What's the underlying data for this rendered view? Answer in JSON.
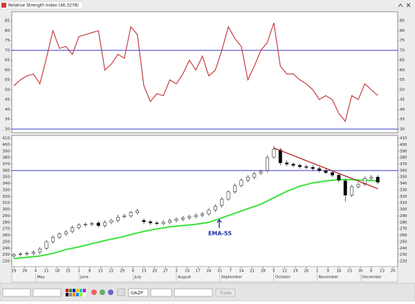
{
  "chart_data": [
    {
      "type": "line",
      "title": "Relative Strength Index (46.3278)",
      "color": "#c0282d",
      "x": [
        0,
        3,
        6,
        9,
        12,
        15,
        18,
        21,
        24,
        27,
        30,
        33,
        36,
        39,
        42,
        45,
        48,
        51,
        54,
        57,
        60,
        63,
        66,
        69,
        72,
        75,
        78,
        81,
        84,
        87,
        90,
        93,
        96,
        99,
        102,
        105,
        108,
        111,
        114,
        117,
        120,
        123,
        126,
        129,
        132,
        135,
        138,
        141,
        144,
        147,
        150,
        153,
        156,
        159,
        162,
        165,
        168
      ],
      "values": [
        52,
        55,
        57,
        58,
        53,
        66,
        80,
        71,
        72,
        68,
        77,
        78,
        79,
        80,
        60,
        63,
        68,
        66,
        82,
        78,
        52,
        44,
        48,
        47,
        55,
        53,
        58,
        65,
        60,
        67,
        57,
        60,
        70,
        82,
        76,
        72,
        55,
        62,
        70,
        74,
        84,
        62,
        58,
        58,
        55,
        53,
        50,
        45,
        47,
        45,
        38,
        34,
        47,
        45,
        53,
        50,
        47
      ],
      "xlim": [
        -1,
        177.2
      ],
      "ylim": [
        28.2,
        89.6
      ],
      "yticks": [
        30,
        35,
        40,
        45,
        50,
        55,
        60,
        65,
        70,
        75,
        80,
        85
      ],
      "hlines": [
        70,
        30
      ],
      "hline_color": "#3535c8"
    },
    {
      "type": "candlestick",
      "up_color": "#ffffff",
      "down_color": "#000000",
      "x": [
        0,
        3,
        6,
        9,
        12,
        15,
        18,
        21,
        24,
        27,
        30,
        33,
        36,
        39,
        42,
        45,
        48,
        51,
        54,
        57,
        60,
        63,
        66,
        69,
        72,
        75,
        78,
        81,
        84,
        87,
        90,
        93,
        96,
        99,
        102,
        105,
        108,
        111,
        114,
        117,
        120,
        123,
        126,
        129,
        132,
        135,
        138,
        141,
        144,
        147,
        150,
        153,
        156,
        159,
        162,
        165,
        168
      ],
      "open": [
        228,
        230,
        231,
        232,
        234,
        240,
        250,
        257,
        262,
        266,
        272,
        276,
        277,
        279,
        275,
        280,
        283,
        289,
        290,
        295,
        283,
        281,
        279,
        278,
        280,
        283,
        285,
        287,
        289,
        291,
        293,
        299,
        306,
        316,
        327,
        337,
        345,
        350,
        356,
        360,
        381,
        392,
        372,
        370,
        368,
        366,
        365,
        363,
        360,
        357,
        353,
        344,
        322,
        335,
        339,
        348,
        350
      ],
      "high": [
        233,
        234,
        235,
        237,
        242,
        253,
        260,
        265,
        268,
        275,
        279,
        280,
        281,
        282,
        283,
        286,
        292,
        293,
        298,
        301,
        286,
        284,
        282,
        283,
        286,
        288,
        290,
        292,
        294,
        296,
        302,
        308,
        319,
        330,
        340,
        348,
        353,
        358,
        361,
        384,
        398,
        395,
        376,
        373,
        371,
        369,
        368,
        366,
        363,
        360,
        356,
        347,
        338,
        342,
        351,
        353,
        353
      ],
      "low": [
        225,
        227,
        228,
        229,
        231,
        237,
        247,
        254,
        259,
        263,
        269,
        273,
        274,
        272,
        272,
        277,
        280,
        286,
        287,
        292,
        277,
        276,
        275,
        275,
        277,
        280,
        282,
        284,
        286,
        288,
        290,
        296,
        303,
        313,
        324,
        334,
        342,
        347,
        353,
        357,
        378,
        368,
        367,
        365,
        363,
        362,
        360,
        357,
        354,
        350,
        342,
        312,
        319,
        332,
        336,
        345,
        339
      ],
      "close": [
        230,
        231,
        232,
        234,
        239,
        250,
        257,
        262,
        265,
        272,
        276,
        277,
        278,
        275,
        280,
        283,
        288,
        290,
        295,
        298,
        281,
        279,
        278,
        280,
        283,
        285,
        287,
        289,
        291,
        293,
        299,
        305,
        316,
        327,
        337,
        345,
        350,
        355,
        358,
        380,
        393,
        372,
        370,
        368,
        366,
        365,
        363,
        360,
        357,
        353,
        345,
        322,
        335,
        338,
        348,
        350,
        342
      ],
      "ema": {
        "color": "#39e039",
        "x": [
          0,
          6,
          12,
          18,
          24,
          30,
          36,
          42,
          48,
          54,
          60,
          66,
          72,
          78,
          84,
          90,
          96,
          102,
          108,
          114,
          120,
          126,
          132,
          138,
          144,
          150,
          156,
          162,
          168
        ],
        "values": [
          224,
          226,
          228,
          232,
          238,
          242,
          247,
          252,
          256,
          261,
          266,
          270,
          273,
          275,
          277,
          280,
          287,
          294,
          301,
          308,
          318,
          328,
          336,
          341,
          344,
          346,
          346,
          345,
          344
        ]
      },
      "trend": {
        "color": "#b52020",
        "x": [
          120,
          168
        ],
        "values": [
          395,
          332
        ]
      },
      "annotation": "EMA-55",
      "annotation_color": "#1a2fa0",
      "xlim": [
        -1,
        177.2
      ],
      "ylim": [
        211.5,
        414.3
      ],
      "yticks": [
        220,
        230,
        240,
        250,
        260,
        270,
        280,
        290,
        300,
        310,
        320,
        330,
        340,
        350,
        360,
        370,
        380,
        390,
        400,
        410
      ],
      "hlines": [
        360
      ],
      "hline_color": "#3535c8",
      "xticks": [
        {
          "value": 0,
          "label": "19"
        },
        {
          "value": 5,
          "label": "26"
        },
        {
          "value": 10,
          "label": "4"
        },
        {
          "value": 15,
          "label": "11"
        },
        {
          "value": 20,
          "label": "18"
        },
        {
          "value": 25,
          "label": "25"
        },
        {
          "value": 30,
          "label": "1"
        },
        {
          "value": 35,
          "label": "8"
        },
        {
          "value": 40,
          "label": "15"
        },
        {
          "value": 45,
          "label": "22"
        },
        {
          "value": 50,
          "label": "29"
        },
        {
          "value": 55,
          "label": "6"
        },
        {
          "value": 60,
          "label": "13"
        },
        {
          "value": 65,
          "label": "20"
        },
        {
          "value": 70,
          "label": "27"
        },
        {
          "value": 75,
          "label": "3"
        },
        {
          "value": 80,
          "label": "10"
        },
        {
          "value": 85,
          "label": "17"
        },
        {
          "value": 90,
          "label": "24"
        },
        {
          "value": 95,
          "label": "31"
        },
        {
          "value": 100,
          "label": "7"
        },
        {
          "value": 105,
          "label": "14"
        },
        {
          "value": 110,
          "label": "21"
        },
        {
          "value": 115,
          "label": "28"
        },
        {
          "value": 120,
          "label": "5"
        },
        {
          "value": 125,
          "label": "12"
        },
        {
          "value": 130,
          "label": "19"
        },
        {
          "value": 135,
          "label": "26"
        },
        {
          "value": 140,
          "label": "2"
        },
        {
          "value": 145,
          "label": "9"
        },
        {
          "value": 150,
          "label": "16"
        },
        {
          "value": 155,
          "label": "23"
        },
        {
          "value": 160,
          "label": "30"
        },
        {
          "value": 165,
          "label": "6"
        },
        {
          "value": 170,
          "label": "13"
        },
        {
          "value": 175,
          "label": "20"
        }
      ],
      "month_labels": [
        {
          "value": 10,
          "label": "May"
        },
        {
          "value": 30,
          "label": "June"
        },
        {
          "value": 55,
          "label": "July"
        },
        {
          "value": 75,
          "label": "August"
        },
        {
          "value": 95,
          "label": "September"
        },
        {
          "value": 120,
          "label": "October"
        },
        {
          "value": 140,
          "label": "November"
        },
        {
          "value": 160,
          "label": "December"
        }
      ]
    }
  ],
  "toolbar": {
    "symbol": "GAZP",
    "trade_button": "Trade"
  }
}
